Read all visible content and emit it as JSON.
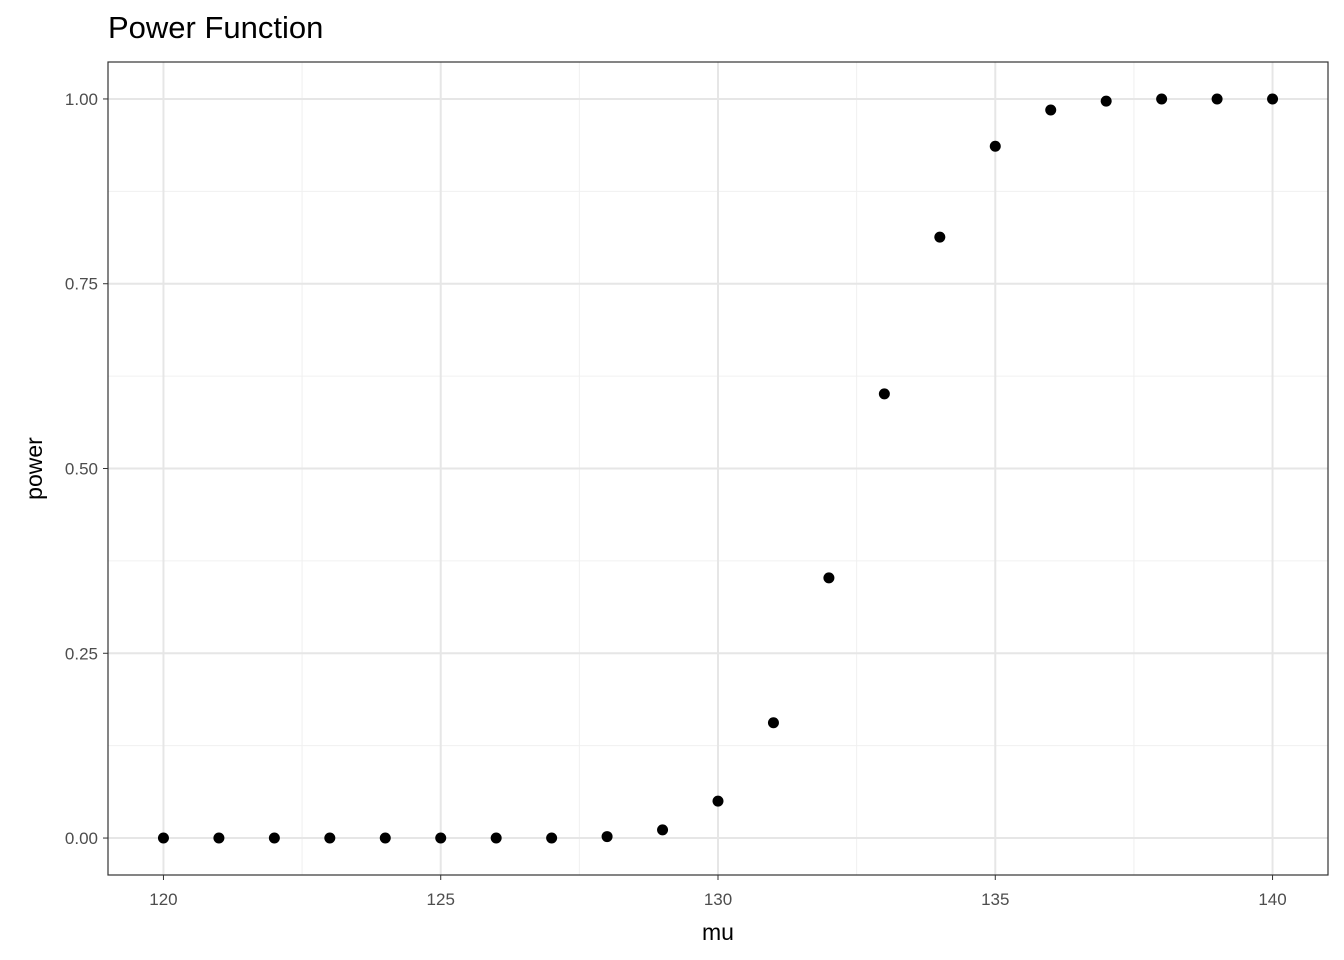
{
  "chart_data": {
    "type": "scatter",
    "title": "Power Function",
    "xlabel": "mu",
    "ylabel": "power",
    "xlim": [
      119,
      141
    ],
    "ylim": [
      -0.05,
      1.05
    ],
    "x_ticks": [
      120,
      125,
      130,
      135,
      140
    ],
    "x_tick_labels": [
      "120",
      "125",
      "130",
      "135",
      "140"
    ],
    "y_ticks": [
      0,
      0.25,
      0.5,
      0.75,
      1
    ],
    "y_tick_labels": [
      "0.00",
      "0.25",
      "0.50",
      "0.75",
      "1.00"
    ],
    "grid": true,
    "x": [
      120,
      121,
      122,
      123,
      124,
      125,
      126,
      127,
      128,
      129,
      130,
      131,
      132,
      133,
      134,
      135,
      136,
      137,
      138,
      139,
      140
    ],
    "y": [
      0,
      0,
      0,
      0,
      0,
      0,
      0,
      0,
      0.002,
      0.011,
      0.05,
      0.156,
      0.352,
      0.601,
      0.813,
      0.936,
      0.985,
      0.997,
      1.0,
      1.0,
      1.0
    ],
    "point_color": "#000000"
  }
}
